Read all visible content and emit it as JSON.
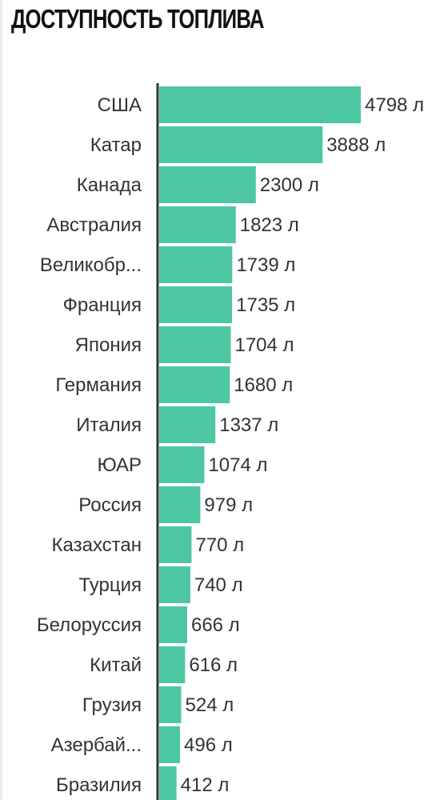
{
  "title": "ДОСТУПНОСТЬ ТОПЛИВА",
  "colors": {
    "bar": "#4dc6a3",
    "axis": "#333333",
    "text": "#333333"
  },
  "chart_data": {
    "type": "bar",
    "orientation": "horizontal",
    "title": "ДОСТУПНОСТЬ ТОПЛИВА",
    "xlabel": "",
    "ylabel": "",
    "unit": "л",
    "xlim": [
      0,
      4798
    ],
    "grid": false,
    "categories": [
      "США",
      "Катар",
      "Канада",
      "Австралия",
      "Великобр...",
      "Франция",
      "Япония",
      "Германия",
      "Италия",
      "ЮАР",
      "Россия",
      "Казахстан",
      "Турция",
      "Белоруссия",
      "Китай",
      "Грузия",
      "Азербай...",
      "Бразилия"
    ],
    "values": [
      4798,
      3888,
      2300,
      1823,
      1739,
      1735,
      1704,
      1680,
      1337,
      1074,
      979,
      770,
      740,
      666,
      616,
      524,
      496,
      412
    ],
    "value_labels": [
      "4798 л",
      "3888 л",
      "2300 л",
      "1823 л",
      "1739 л",
      "1735 л",
      "1704 л",
      "1680 л",
      "1337 л",
      "1074 л",
      "979 л",
      "770 л",
      "740 л",
      "666 л",
      "616 л",
      "524 л",
      "496 л",
      "412 л"
    ]
  }
}
